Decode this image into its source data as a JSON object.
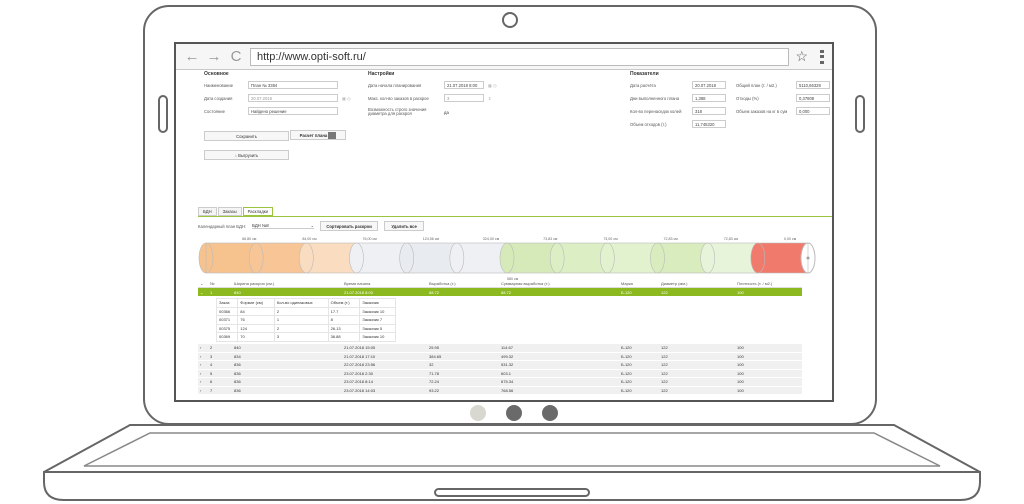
{
  "browser": {
    "url": "http://www.opti-soft.ru/",
    "back_icon": "arrow-left-icon",
    "forward_icon": "arrow-right-icon",
    "reload_icon": "reload-icon",
    "star_icon": "star-icon"
  },
  "dots": {
    "colors": [
      "#d8d8d0",
      "#6a6a6a",
      "#6a6a6a"
    ]
  },
  "basic": {
    "title": "Основное",
    "name_label": "Наименование",
    "name_value": "План № 3384",
    "date_label": "Дата создания",
    "date_value": "20.07.2018",
    "state_label": "Состояние",
    "state_value": "Найдено решение",
    "save_label": "Сохранить",
    "calc_label": "Расчет плана",
    "export_label": "↓ Выгрузить"
  },
  "settings": {
    "title": "Настройки",
    "start_label": "Дата начала планирования",
    "start_value": "21.07.2018 8:00",
    "max_orders_label": "Макс. кол-во заказов в раскрое",
    "max_orders_value": "3",
    "strict_label": "Возможность строго значения диаметра для раскроя",
    "strict_value": "да"
  },
  "indicators": {
    "title": "Показатели",
    "calc_date_label": "Дата расчёта",
    "calc_date_value": "20.07.2018",
    "done_label": "Дни выполненного плана",
    "done_value": "1,388",
    "changes_label": "Кол-во перенаседок колей",
    "changes_value": "318",
    "waste_label": "Объем отходов (т.)",
    "waste_value": "11,745320",
    "total_label": "Общий план (т. / м2.)",
    "total_value": "5110,66328",
    "waste_pct_label": "Отходы (%)",
    "waste_pct_value": "0,37808",
    "orders_vol_label": "Объем заказов на кг в сум",
    "orders_vol_value": "0,000"
  },
  "tabs": [
    "БДН",
    "Заказы",
    "Раскладки"
  ],
  "toolbar": {
    "calendar_label": "Календарный план БДН:",
    "calendar_value": "БДН №8",
    "sort_label": "Сортировать раскрои",
    "delete_label": "Удалить все"
  },
  "timeline": {
    "top_labels": [
      "66,80 см",
      "84,00 см",
      "76,00 см",
      "124,56 см",
      "324,00 см",
      "73,83 см",
      "73,00 см",
      "72,83 см",
      "72,83 см",
      "0,00 см"
    ],
    "bottom_label": "580 см",
    "segment_colors": [
      "#f6c28e",
      "#f7c596",
      "#fadcc0",
      "#eef0f4",
      "#e8ebf0",
      "#eef0f4",
      "#d5eab8",
      "#dcefc4",
      "#e2f2ce",
      "#d8ecbe",
      "#e8f4da",
      "#f07a6c"
    ]
  },
  "table": {
    "headers": [
      "№",
      "Ширина раскроя (см.)",
      "Время начала",
      "Выработка (т.)",
      "Суммарная выработка (т.)",
      "Марка",
      "Диаметр (мм.)",
      "Плотность (т. / м2.)"
    ],
    "selected": [
      "1",
      "840",
      "21.07.2018 8:00",
      "88.72",
      "88.72",
      "Б-120",
      "122",
      "100"
    ],
    "sub_headers": [
      "Заказ",
      "Формат (см)",
      "Кол-во одинаковых",
      "Объем (т.)",
      "Заказчик"
    ],
    "sub_rows": [
      [
        "00366",
        "84",
        "2",
        "17.7",
        "Заказчик 10"
      ],
      [
        "00371",
        "76",
        "1",
        "8",
        "Заказчик 7"
      ],
      [
        "00375",
        "124",
        "2",
        "26.13",
        "Заказчик 5"
      ],
      [
        "00369",
        "70",
        "3",
        "36.88",
        "Заказчик 10"
      ]
    ],
    "rows": [
      [
        "2",
        "840",
        "21.07.2018 15:05",
        "25.95",
        "114.67",
        "Б-120",
        "122",
        "100"
      ],
      [
        "3",
        "834",
        "21.07.2018 17:10",
        "384.65",
        "499.32",
        "Б-120",
        "122",
        "100"
      ],
      [
        "4",
        "836",
        "22.07.2018 23:56",
        "32",
        "531.32",
        "Б-120",
        "122",
        "100"
      ],
      [
        "5",
        "836",
        "23.07.2018 2:30",
        "71.78",
        "603.1",
        "Б-120",
        "122",
        "100"
      ],
      [
        "6",
        "836",
        "23.07.2018 8:14",
        "72.24",
        "675.34",
        "Б-120",
        "122",
        "100"
      ],
      [
        "7",
        "836",
        "23.07.2018 14:03",
        "93.22",
        "768.56",
        "Б-120",
        "122",
        "100"
      ]
    ]
  }
}
